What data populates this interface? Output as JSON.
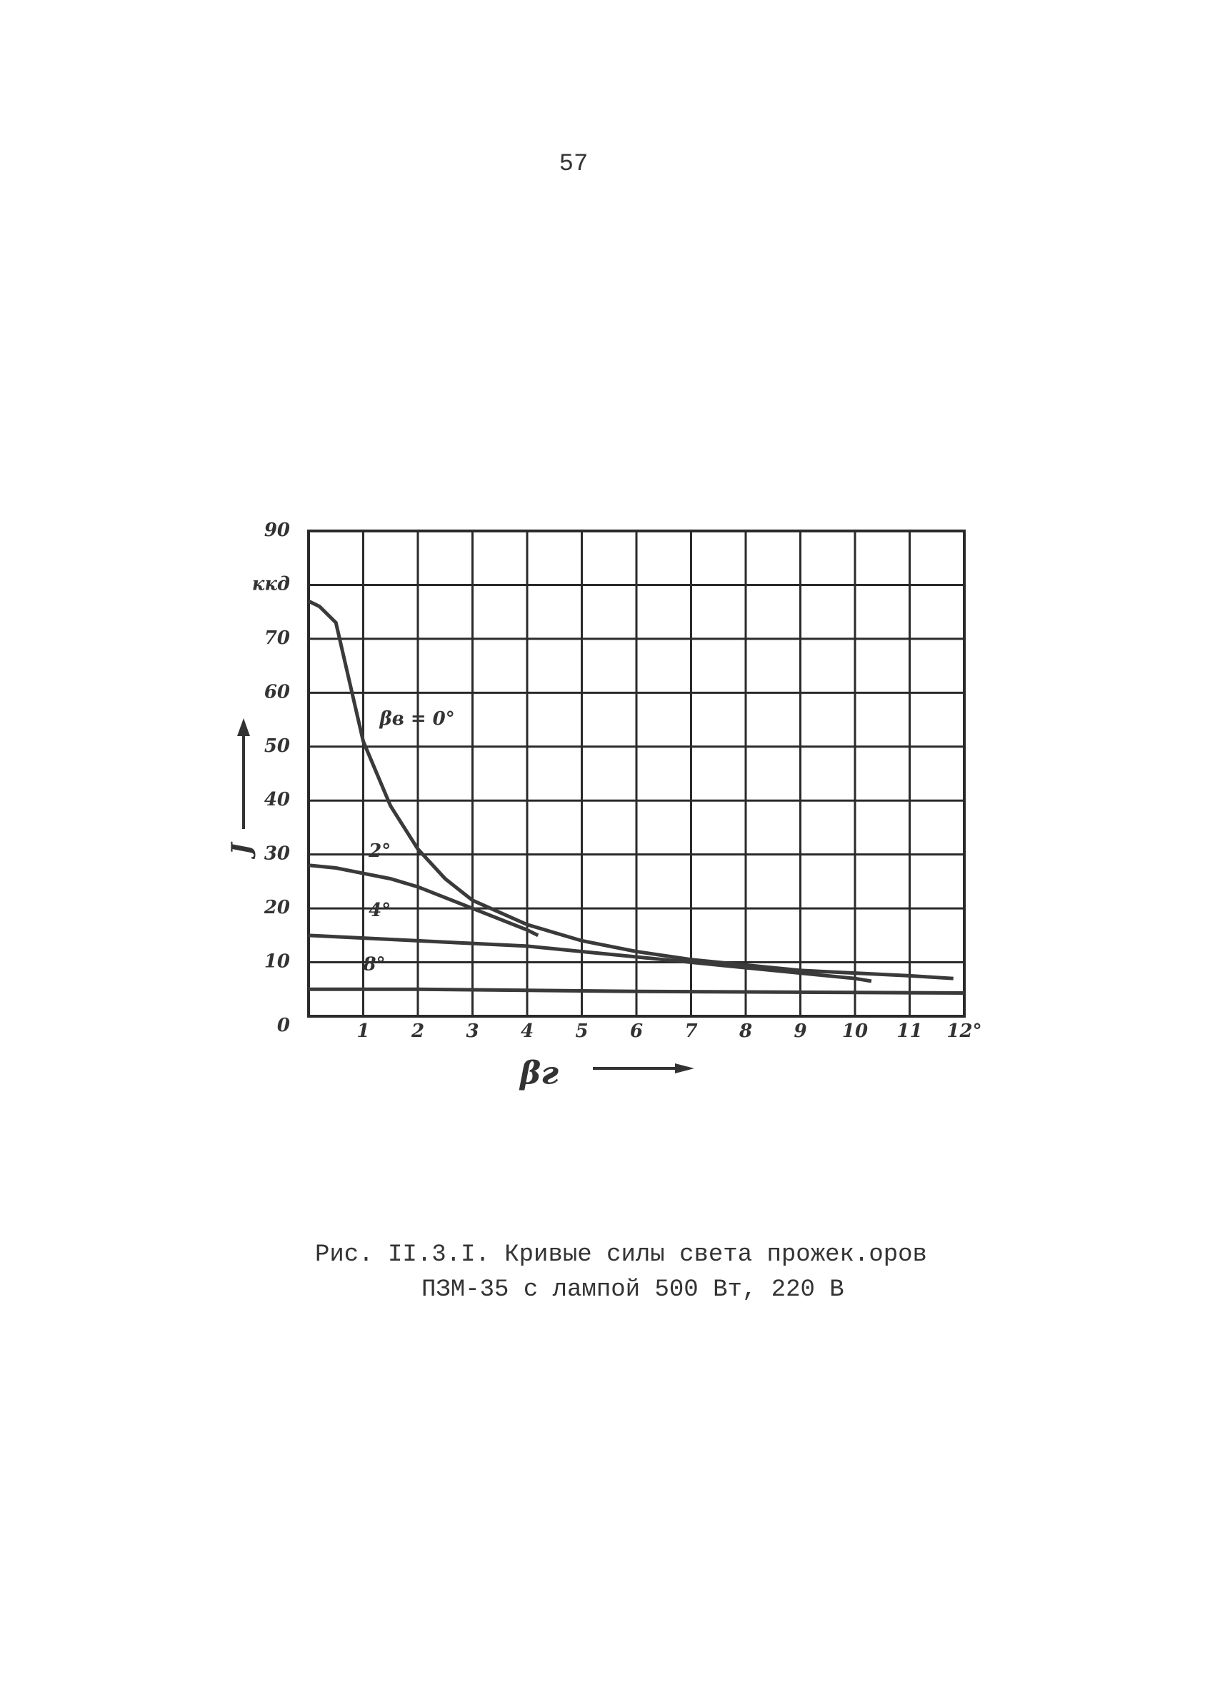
{
  "page_number": "57",
  "caption": [
    "Рис. II.3.I. Кривые силы света прожек.оров",
    "ПЗМ-35 с лампой 500 Вт, 220 В"
  ],
  "chart_data": {
    "type": "line",
    "y_label": "J",
    "x_label": "βг",
    "xlim": [
      0,
      12
    ],
    "xticks": [
      1,
      2,
      3,
      4,
      5,
      6,
      7,
      8,
      9,
      10,
      11,
      {
        "value": 12,
        "label": "12°"
      }
    ],
    "ylim": [
      0,
      90
    ],
    "yticks": [
      0,
      10,
      20,
      30,
      40,
      50,
      60,
      70,
      {
        "value": 80,
        "label": "ккд"
      },
      90
    ],
    "grid": true,
    "series": [
      {
        "name": "βв = 0°",
        "color": "#3a3a3a",
        "x": [
          0,
          0.2,
          0.5,
          1,
          1.5,
          2,
          2.5,
          3,
          4,
          5,
          6,
          7,
          8,
          9,
          10,
          11,
          11.8
        ],
        "values": [
          77,
          76,
          73,
          51,
          39,
          31,
          25.5,
          21.5,
          17,
          14,
          12,
          10.5,
          9.5,
          8.5,
          8,
          7.5,
          7
        ]
      },
      {
        "name": "2°",
        "color": "#3a3a3a",
        "x": [
          0,
          0.5,
          1,
          1.5,
          2,
          2.5,
          3,
          3.5,
          4,
          4.2
        ],
        "values": [
          28,
          27.5,
          26.5,
          25.5,
          24,
          22,
          20,
          18,
          16,
          15
        ]
      },
      {
        "name": "4°",
        "color": "#3a3a3a",
        "x": [
          0,
          1,
          2,
          3,
          4,
          5,
          6,
          7,
          8,
          9,
          10,
          10.3
        ],
        "values": [
          15,
          14.5,
          14,
          13.5,
          13,
          12,
          11,
          10,
          9,
          8,
          7,
          6.5
        ]
      },
      {
        "name": "8°",
        "color": "#3a3a3a",
        "x": [
          0,
          2,
          4,
          6,
          8,
          10,
          12
        ],
        "values": [
          5,
          5,
          4.8,
          4.6,
          4.5,
          4.4,
          4.3
        ]
      }
    ]
  }
}
